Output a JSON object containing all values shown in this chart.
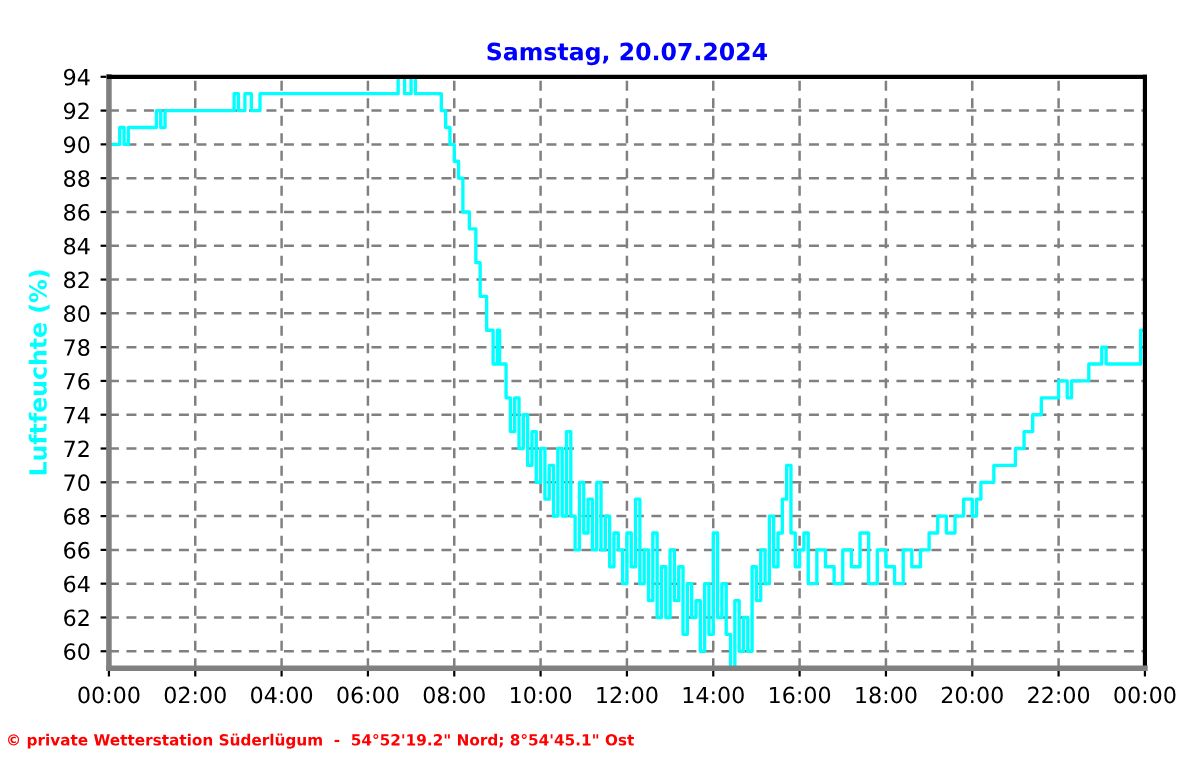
{
  "chart_data": {
    "type": "step",
    "title": "Samstag, 20.07.2024",
    "ylabel": "Luftfeuchte (%)",
    "annotations": [
      "© private Wetterstation Süderlügum  -  54°52'19.2\" Nord; 8°54'45.1\" Ost"
    ],
    "xlim": [
      0,
      24
    ],
    "xticks": [
      {
        "value": 0,
        "label": "00:00"
      },
      {
        "value": 2,
        "label": "02:00"
      },
      {
        "value": 4,
        "label": "04:00"
      },
      {
        "value": 6,
        "label": "06:00"
      },
      {
        "value": 8,
        "label": "08:00"
      },
      {
        "value": 10,
        "label": "10:00"
      },
      {
        "value": 12,
        "label": "12:00"
      },
      {
        "value": 14,
        "label": "14:00"
      },
      {
        "value": 16,
        "label": "16:00"
      },
      {
        "value": 18,
        "label": "18:00"
      },
      {
        "value": 20,
        "label": "20:00"
      },
      {
        "value": 22,
        "label": "22:00"
      },
      {
        "value": 24,
        "label": "00:00"
      }
    ],
    "ylim": [
      59,
      94
    ],
    "yticks": [
      60,
      62,
      64,
      66,
      68,
      70,
      72,
      74,
      76,
      78,
      80,
      82,
      84,
      86,
      88,
      90,
      92,
      94
    ],
    "grid": true,
    "line_style": "solid",
    "marker": "none",
    "series": [
      {
        "color": "#00ffff",
        "x": [
          0.0,
          0.25,
          0.35,
          0.45,
          1.1,
          1.2,
          1.3,
          2.9,
          3.0,
          3.15,
          3.3,
          3.5,
          6.7,
          6.85,
          7.0,
          7.1,
          7.7,
          7.8,
          7.9,
          8.0,
          8.1,
          8.2,
          8.35,
          8.5,
          8.6,
          8.75,
          8.9,
          9.0,
          9.05,
          9.2,
          9.3,
          9.4,
          9.5,
          9.6,
          9.7,
          9.8,
          9.9,
          10.0,
          10.1,
          10.2,
          10.3,
          10.4,
          10.5,
          10.6,
          10.7,
          10.8,
          10.9,
          11.0,
          11.1,
          11.2,
          11.3,
          11.4,
          11.5,
          11.6,
          11.7,
          11.8,
          11.9,
          12.0,
          12.1,
          12.2,
          12.3,
          12.4,
          12.5,
          12.6,
          12.7,
          12.8,
          12.9,
          13.0,
          13.1,
          13.2,
          13.3,
          13.4,
          13.5,
          13.6,
          13.7,
          13.8,
          13.9,
          14.0,
          14.1,
          14.2,
          14.3,
          14.4,
          14.5,
          14.6,
          14.7,
          14.8,
          14.9,
          15.0,
          15.1,
          15.2,
          15.3,
          15.4,
          15.5,
          15.6,
          15.7,
          15.8,
          15.9,
          16.0,
          16.1,
          16.2,
          16.4,
          16.6,
          16.8,
          17.0,
          17.2,
          17.4,
          17.6,
          17.8,
          18.0,
          18.2,
          18.4,
          18.6,
          18.8,
          19.0,
          19.2,
          19.4,
          19.6,
          19.8,
          20.0,
          20.1,
          20.2,
          20.5,
          21.0,
          21.2,
          21.4,
          21.6,
          22.0,
          22.2,
          22.3,
          22.7,
          23.0,
          23.1,
          23.2,
          23.9,
          24.0
        ],
        "values": [
          90,
          91,
          90,
          91,
          92,
          91,
          92,
          93,
          92,
          93,
          92,
          93,
          94,
          93,
          94,
          93,
          92,
          91,
          90,
          89,
          88,
          86,
          85,
          83,
          81,
          79,
          77,
          79,
          77,
          75,
          73,
          75,
          72,
          74,
          71,
          73,
          70,
          72,
          69,
          71,
          68,
          72,
          68,
          73,
          68,
          66,
          70,
          67,
          69,
          66,
          70,
          66,
          68,
          65,
          67,
          66,
          64,
          67,
          65,
          69,
          64,
          66,
          63,
          67,
          62,
          65,
          62,
          66,
          63,
          65,
          61,
          64,
          62,
          63,
          60,
          64,
          61,
          67,
          62,
          64,
          61,
          59,
          63,
          60,
          62,
          60,
          65,
          63,
          66,
          64,
          68,
          65,
          67,
          69,
          71,
          67,
          65,
          66,
          67,
          64,
          66,
          65,
          64,
          66,
          65,
          67,
          64,
          66,
          65,
          64,
          66,
          65,
          66,
          67,
          68,
          67,
          68,
          69,
          68,
          69,
          70,
          71,
          72,
          73,
          74,
          75,
          76,
          75,
          76,
          77,
          78,
          77,
          77,
          79,
          79
        ]
      }
    ]
  }
}
